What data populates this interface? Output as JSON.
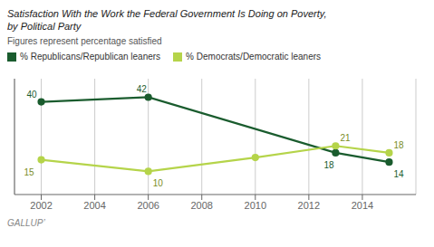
{
  "chart_data": {
    "type": "line",
    "title": "Satisfaction With the Work the Federal Government Is Doing on Poverty,\nby Political Party",
    "subtitle": "Figures represent percentage satisfied",
    "source": "GALLUP’",
    "series": [
      {
        "name": "% Republicans/Republican leaners",
        "color": "#1a5c2e",
        "marker": "circle",
        "x": [
          2002,
          2006,
          2013,
          2015
        ],
        "values": [
          40,
          42,
          18,
          14
        ],
        "annotations": [
          {
            "x": 2002,
            "y": 40,
            "text": "40",
            "color": "#1a5c2e"
          },
          {
            "x": 2006,
            "y": 42,
            "text": "42",
            "color": "#1a5c2e"
          },
          {
            "x": 2013,
            "y": 18,
            "text": "18",
            "color": "#1a5c2e"
          },
          {
            "x": 2015,
            "y": 14,
            "text": "14",
            "color": "#1a5c2e"
          }
        ]
      },
      {
        "name": "% Democrats/Democratic leaners",
        "color": "#b5d44a",
        "marker": "circle",
        "x": [
          2002,
          2006,
          2010,
          2013,
          2015
        ],
        "values": [
          15,
          10,
          16,
          21,
          18
        ],
        "annotations": [
          {
            "x": 2002,
            "y": 15,
            "text": "15",
            "color": "#7a8c1e"
          },
          {
            "x": 2006,
            "y": 10,
            "text": "10",
            "color": "#7a8c1e"
          },
          {
            "x": 2013,
            "y": 21,
            "text": "21",
            "color": "#7a8c1e"
          },
          {
            "x": 2015,
            "y": 18,
            "text": "18",
            "color": "#7a8c1e"
          }
        ]
      }
    ],
    "xlim": [
      2001,
      2016
    ],
    "xticks": [
      2002,
      2004,
      2006,
      2008,
      2010,
      2012,
      2014
    ],
    "ylim": [
      0,
      50
    ],
    "grid": "x",
    "legend": "upper left",
    "tick_labels": "x"
  }
}
